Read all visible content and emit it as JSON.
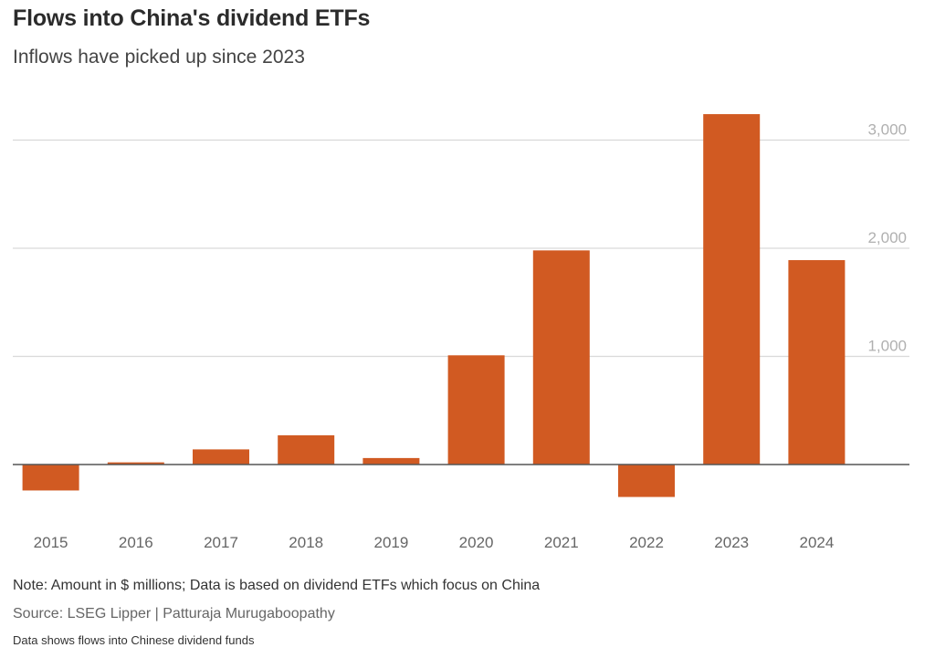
{
  "header": {
    "title": "Flows into China's dividend ETFs",
    "subtitle": "Inflows have picked up since 2023"
  },
  "footer": {
    "note": "Note: Amount in $ millions; Data is based on dividend ETFs which focus on China",
    "source": "Source: LSEG Lipper | Patturaja Murugaboopathy",
    "caption": "Data shows flows into Chinese dividend funds"
  },
  "colors": {
    "bar": "#d15a22",
    "grid": "#d9d9d9",
    "zero_line": "#555555"
  },
  "chart_data": {
    "type": "bar",
    "title": "Flows into China's dividend ETFs",
    "subtitle": "Inflows have picked up since 2023",
    "xlabel": "",
    "ylabel": "",
    "categories": [
      "2015",
      "2016",
      "2017",
      "2018",
      "2019",
      "2020",
      "2021",
      "2022",
      "2023",
      "2024"
    ],
    "values": [
      -240,
      20,
      140,
      270,
      60,
      1010,
      1980,
      -300,
      3240,
      1890
    ],
    "ylim": [
      -500,
      3300
    ],
    "yticks": [
      1000,
      2000,
      3000
    ],
    "ytick_labels": [
      "1,000",
      "2,000",
      "3,000"
    ],
    "grid": true,
    "legend": "none"
  }
}
